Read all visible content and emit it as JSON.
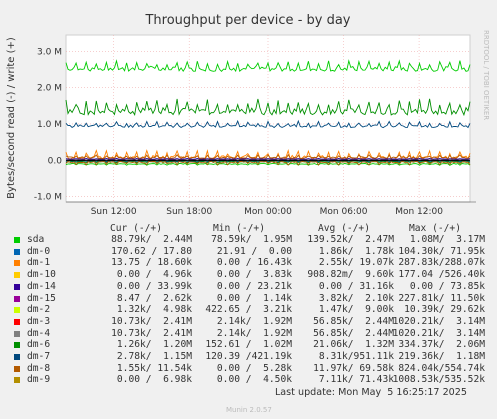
{
  "chart_data": {
    "type": "line",
    "title": "Throughput per device - by day",
    "ylabel": "Bytes/second read (-) / write (+)",
    "watermark": "RRDTOOL / TOBI OETIKER",
    "ylim": [
      -1.15,
      3.45
    ],
    "yticks": [
      "3.0 M",
      "2.0 M",
      "1.0 M",
      "0.0",
      "-1.0 M"
    ],
    "ytick_values": [
      3.0,
      2.0,
      1.0,
      0.0,
      -1.0
    ],
    "xticks": [
      "Sun 12:00",
      "Sun 18:00",
      "Mon 00:00",
      "Mon 06:00",
      "Mon 12:00"
    ],
    "xtick_values": [
      0.118,
      0.305,
      0.5,
      0.687,
      0.874
    ],
    "grid": true,
    "legend_columns": [
      "Cur (-/+)",
      "Min (-/+)",
      "Avg (-/+)",
      "Max (-/+)"
    ],
    "series": [
      {
        "name": "sda",
        "color": "#00cc00",
        "cur": "88.79k/  2.44M",
        "min": "78.59k/  1.95M",
        "avg": "139.52k/  2.47M",
        "max": "1.08M/  3.17M",
        "write_level": 2.45,
        "write_amp": 0.3,
        "read_level": 0.09,
        "read_amp": 0.05
      },
      {
        "name": "dm-0",
        "color": "#0066b3",
        "cur": "170.62 / 17.80",
        "min": "21.91 /  0.00",
        "avg": "1.86k/  1.78k",
        "max": "104.30k/ 71.95k",
        "write_level": 0.0,
        "write_amp": 0.0,
        "read_level": 0.0,
        "read_amp": 0.0
      },
      {
        "name": "dm-1",
        "color": "#ff8000",
        "cur": "13.75 / 18.60k",
        "min": "0.00 / 16.43k",
        "avg": "2.55k/ 19.07k",
        "max": "287.83k/288.07k",
        "write_level": 0.02,
        "write_amp": 0.25,
        "read_level": 0.0,
        "read_amp": 0.0
      },
      {
        "name": "dm-10",
        "color": "#ffcc00",
        "cur": "0.00 /  4.96k",
        "min": "0.00 /  3.83k",
        "avg": "908.82m/  9.60k",
        "max": "177.04 /526.40k",
        "write_level": 0.0,
        "write_amp": 0.0,
        "read_level": 0.0,
        "read_amp": 0.0
      },
      {
        "name": "dm-14",
        "color": "#330099",
        "cur": "0.00 / 33.99k",
        "min": "0.00 / 23.21k",
        "avg": "0.00 / 31.16k",
        "max": "0.00 / 73.85k",
        "write_level": 0.03,
        "write_amp": 0.02,
        "read_level": 0.0,
        "read_amp": 0.0
      },
      {
        "name": "dm-15",
        "color": "#990099",
        "cur": "8.47 /  2.62k",
        "min": "0.00 /  1.14k",
        "avg": "3.82k/  2.10k",
        "max": "227.81k/ 11.50k",
        "write_level": 0.0,
        "write_amp": 0.0,
        "read_level": 0.0,
        "read_amp": 0.0
      },
      {
        "name": "dm-2",
        "color": "#ccff00",
        "cur": "1.32k/  4.98k",
        "min": "422.65 /  3.21k",
        "avg": "1.47k/  9.00k",
        "max": "10.39k/ 29.62k",
        "write_level": 0.0,
        "write_amp": 0.0,
        "read_level": 0.0,
        "read_amp": 0.0
      },
      {
        "name": "dm-3",
        "color": "#ff0000",
        "cur": "10.73k/  2.41M",
        "min": "2.14k/  1.92M",
        "avg": "56.85k/  2.44M",
        "max": "1020.21k/  3.14M",
        "write_level": 0.0,
        "write_amp": 0.0,
        "read_level": 0.0,
        "read_amp": 0.0
      },
      {
        "name": "dm-4",
        "color": "#808080",
        "cur": "10.73k/  2.41M",
        "min": "2.14k/  1.92M",
        "avg": "56.85k/  2.44M",
        "max": "1020.21k/  3.14M",
        "write_level": 0.0,
        "write_amp": 0.0,
        "read_level": 0.0,
        "read_amp": 0.0
      },
      {
        "name": "dm-6",
        "color": "#008f00",
        "cur": "1.26k/  1.20M",
        "min": "152.61 /  1.02M",
        "avg": "21.06k/  1.32M",
        "max": "334.37k/  2.06M",
        "write_level": 1.25,
        "write_amp": 0.45,
        "read_level": 0.03,
        "read_amp": 0.04
      },
      {
        "name": "dm-7",
        "color": "#00487d",
        "cur": "2.78k/  1.15M",
        "min": "120.39 /421.19k",
        "avg": "8.31k/951.11k",
        "max": "219.36k/  1.18M",
        "write_level": 0.9,
        "write_amp": 0.18,
        "read_level": 0.01,
        "read_amp": 0.03
      },
      {
        "name": "dm-8",
        "color": "#b35a00",
        "cur": "1.55k/ 11.54k",
        "min": "0.00 /  5.28k",
        "avg": "11.97k/ 69.58k",
        "max": "824.04k/554.74k",
        "write_level": 0.05,
        "write_amp": 0.1,
        "read_level": 0.03,
        "read_amp": 0.1
      },
      {
        "name": "dm-9",
        "color": "#b38f00",
        "cur": "0.00 /  6.98k",
        "min": "0.00 /  4.50k",
        "avg": "7.11k/ 71.43k",
        "max": "1008.53k/535.52k",
        "write_level": 0.0,
        "write_amp": 0.0,
        "read_level": 0.0,
        "read_amp": 0.0
      }
    ]
  },
  "footer": {
    "last_update": "Last update: Mon May  5 16:25:17 2025",
    "munin": "Munin 2.0.57"
  }
}
